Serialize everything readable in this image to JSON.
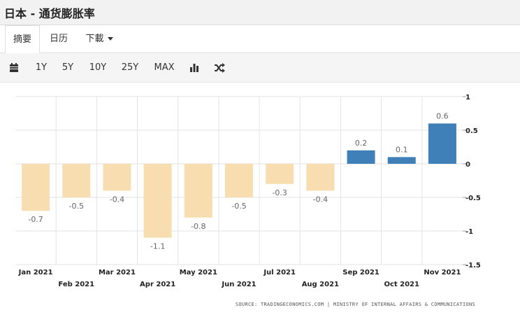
{
  "title": "日本 - 通货膨胀率",
  "tabs": [
    {
      "label": "摘要",
      "active": true
    },
    {
      "label": "日历",
      "active": false
    },
    {
      "label": "下載",
      "active": false
    }
  ],
  "toolbar": {
    "ranges": [
      "1Y",
      "5Y",
      "10Y",
      "25Y",
      "MAX"
    ],
    "icons": [
      "calendar-icon",
      "bar-chart-icon",
      "shuffle-icon"
    ]
  },
  "colors": {
    "negative": "#f7ddb0",
    "positive": "#4080b8",
    "grid": "#e3e3e3"
  },
  "chart_data": {
    "type": "bar",
    "title": "",
    "xlabel": "",
    "ylabel": "",
    "ylim": [
      -1.5,
      1
    ],
    "yticks": [
      1,
      0.5,
      0,
      -0.5,
      -1,
      -1.5
    ],
    "ytick_labels": [
      "1",
      "0.5",
      "0",
      "-0.5",
      "-1",
      "-1.5"
    ],
    "categories": [
      "Jan 2021",
      "Feb 2021",
      "Mar 2021",
      "Apr 2021",
      "May 2021",
      "Jun 2021",
      "Jul 2021",
      "Aug 2021",
      "Sep 2021",
      "Oct 2021",
      "Nov 2021"
    ],
    "values": [
      -0.7,
      -0.5,
      -0.4,
      -1.1,
      -0.8,
      -0.5,
      -0.3,
      -0.4,
      0.2,
      0.1,
      0.6
    ],
    "data_labels": [
      "-0.7",
      "-0.5",
      "-0.4",
      "-1.1",
      "-0.8",
      "-0.5",
      "-0.3",
      "-0.4",
      "0.2",
      "0.1",
      "0.6"
    ],
    "grid": true,
    "source": "SOURCE: TRADINGECONOMICS.COM | MINISTRY OF INTERNAL AFFAIRS & COMMUNICATIONS"
  }
}
